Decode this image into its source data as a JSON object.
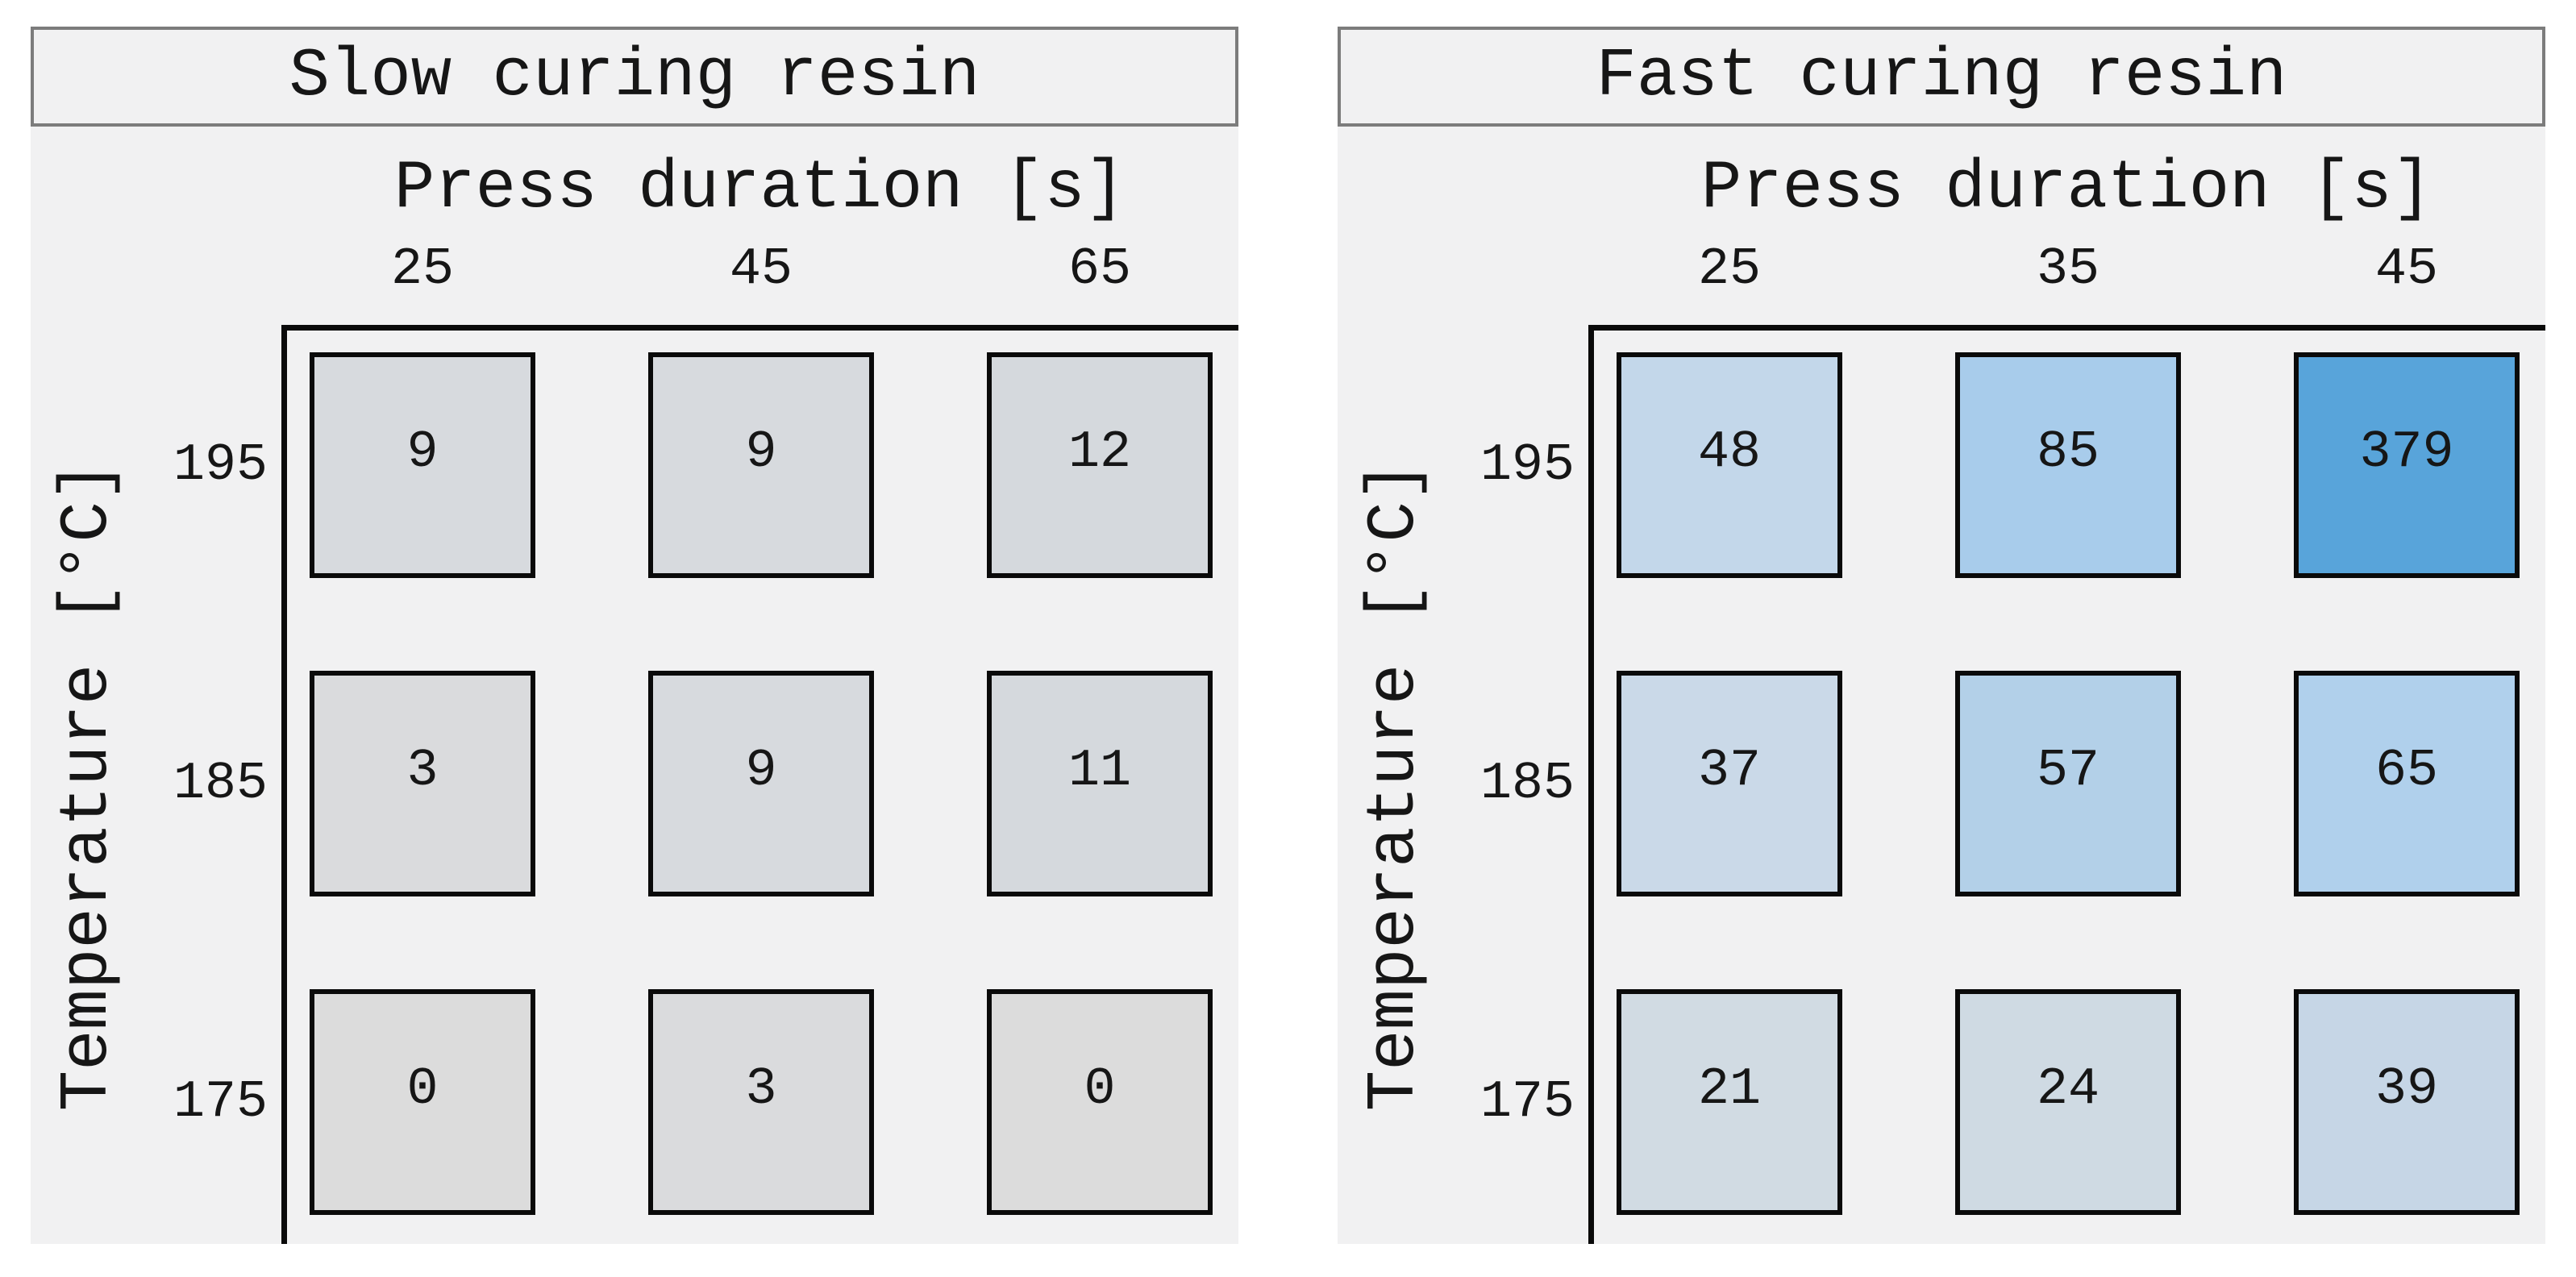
{
  "style": {
    "page_background": "#ffffff",
    "panel_background": "#f1f1f2",
    "title_border_color": "#7c7c7c",
    "axis_color": "#0a0a0a",
    "text_color": "#161616",
    "max_value_blue": "#58a4da",
    "zero_value_gray": "#dcdcdc"
  },
  "chart_data": [
    {
      "type": "heatmap",
      "title": "Slow curing resin",
      "xlabel": "Press duration [s]",
      "ylabel": "Temperature [°C]",
      "x": [
        25,
        45,
        65
      ],
      "y": [
        195,
        185,
        175
      ],
      "values": [
        [
          9,
          9,
          12
        ],
        [
          3,
          9,
          11
        ],
        [
          0,
          3,
          0
        ]
      ],
      "legend": "none",
      "grid": false
    },
    {
      "type": "heatmap",
      "title": "Fast curing resin",
      "xlabel": "Press duration [s]",
      "ylabel": "Temperature [°C]",
      "x": [
        25,
        35,
        45
      ],
      "y": [
        195,
        185,
        175
      ],
      "values": [
        [
          48,
          85,
          379
        ],
        [
          37,
          57,
          65
        ],
        [
          21,
          24,
          39
        ]
      ],
      "legend": "none",
      "grid": false
    }
  ],
  "panels": [
    {
      "title": "Slow curing resin",
      "col_axis_label": "Press duration [s]",
      "row_axis_label": "Temperature [°C]",
      "col_ticks": [
        "25",
        "45",
        "65"
      ],
      "row_ticks": [
        "195",
        "185",
        "175"
      ],
      "rows": [
        {
          "cells": [
            {
              "value": "9",
              "color": "#d7dade"
            },
            {
              "value": "9",
              "color": "#d7dade"
            },
            {
              "value": "12",
              "color": "#d5d9dd"
            }
          ]
        },
        {
          "cells": [
            {
              "value": "3",
              "color": "#dadbdd"
            },
            {
              "value": "9",
              "color": "#d7dade"
            },
            {
              "value": "11",
              "color": "#d5d9dd"
            }
          ]
        },
        {
          "cells": [
            {
              "value": "0",
              "color": "#dcdcdc"
            },
            {
              "value": "3",
              "color": "#dadbdd"
            },
            {
              "value": "0",
              "color": "#dcdcdc"
            }
          ]
        }
      ]
    },
    {
      "title": "Fast curing resin",
      "col_axis_label": "Press duration [s]",
      "row_axis_label": "Temperature [°C]",
      "col_ticks": [
        "25",
        "35",
        "45"
      ],
      "row_ticks": [
        "195",
        "185",
        "175"
      ],
      "rows": [
        {
          "cells": [
            {
              "value": "48",
              "color": "#c3d7ea"
            },
            {
              "value": "85",
              "color": "#a8cceb"
            },
            {
              "value": "379",
              "color": "#58a4da"
            }
          ]
        },
        {
          "cells": [
            {
              "value": "37",
              "color": "#cad9e8"
            },
            {
              "value": "57",
              "color": "#b3d0e8"
            },
            {
              "value": "65",
              "color": "#b0d0ec"
            }
          ]
        },
        {
          "cells": [
            {
              "value": "21",
              "color": "#d1dbe3"
            },
            {
              "value": "24",
              "color": "#cfdae3"
            },
            {
              "value": "39",
              "color": "#c6d6e6"
            }
          ]
        }
      ]
    }
  ]
}
